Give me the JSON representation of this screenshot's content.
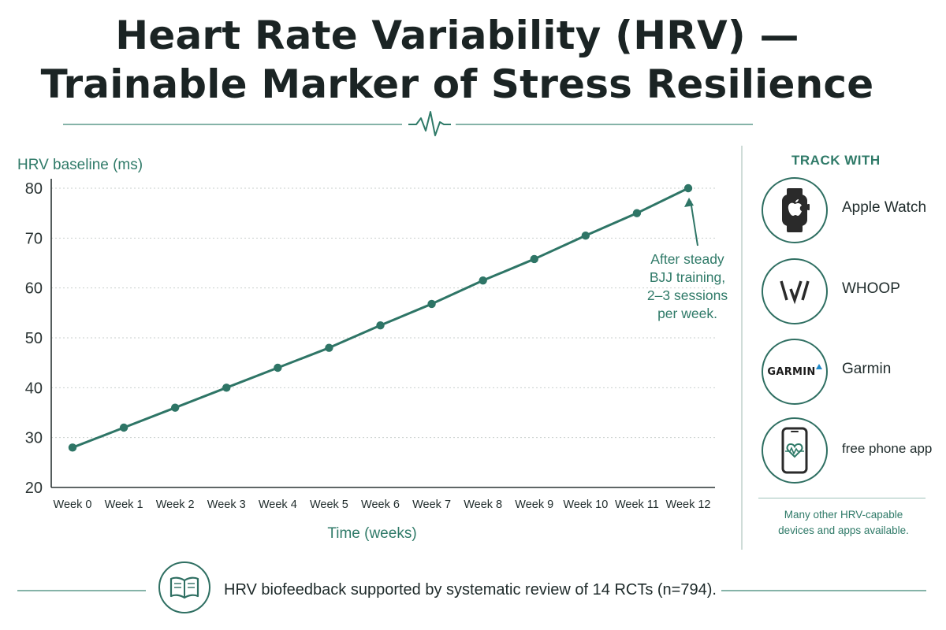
{
  "title_line1": "Heart Rate Variability (HRV) —",
  "title_line2": "Trainable Marker of Stress Resilience",
  "colors": {
    "accent": "#2f7a68",
    "line": "#2e7566",
    "text_dark": "#1b2424",
    "grid": "#c9cfcd"
  },
  "chart_data": {
    "type": "line",
    "ylabel": "HRV baseline (ms)",
    "xlabel": "Time (weeks)",
    "ylim": [
      20,
      80
    ],
    "yticks": [
      20,
      30,
      40,
      50,
      60,
      70,
      80
    ],
    "categories": [
      "Week 0",
      "Week 1",
      "Week 2",
      "Week 3",
      "Week 4",
      "Week 5",
      "Week 6",
      "Week 7",
      "Week 8",
      "Week 9",
      "Week 10",
      "Week 11",
      "Week 12"
    ],
    "series": [
      {
        "values": [
          28,
          32,
          36,
          40,
          44,
          48,
          52.5,
          56.8,
          61.5,
          65.8,
          70.5,
          75,
          80
        ]
      }
    ],
    "grid": "horizontal dotted",
    "annotation": {
      "lines": [
        "After steady",
        "BJJ training,",
        "2–3 sessions",
        "per week."
      ]
    }
  },
  "sidebar": {
    "heading": "TRACK WITH",
    "devices": [
      {
        "label": "Apple Watch",
        "icon": "apple-watch-icon"
      },
      {
        "label": "WHOOP",
        "icon": "whoop-logo-icon"
      },
      {
        "label": "Garmin",
        "icon": "garmin-logo-icon",
        "logo_text": "GARMIN"
      },
      {
        "label": "free phone app",
        "icon": "phone-heartbeat-icon"
      }
    ],
    "note_line1": "Many other HRV-capable",
    "note_line2": "devices and apps available."
  },
  "footer": {
    "icon": "open-book-icon",
    "text": "HRV biofeedback supported by systematic review of 14 RCTs (n=794)."
  }
}
